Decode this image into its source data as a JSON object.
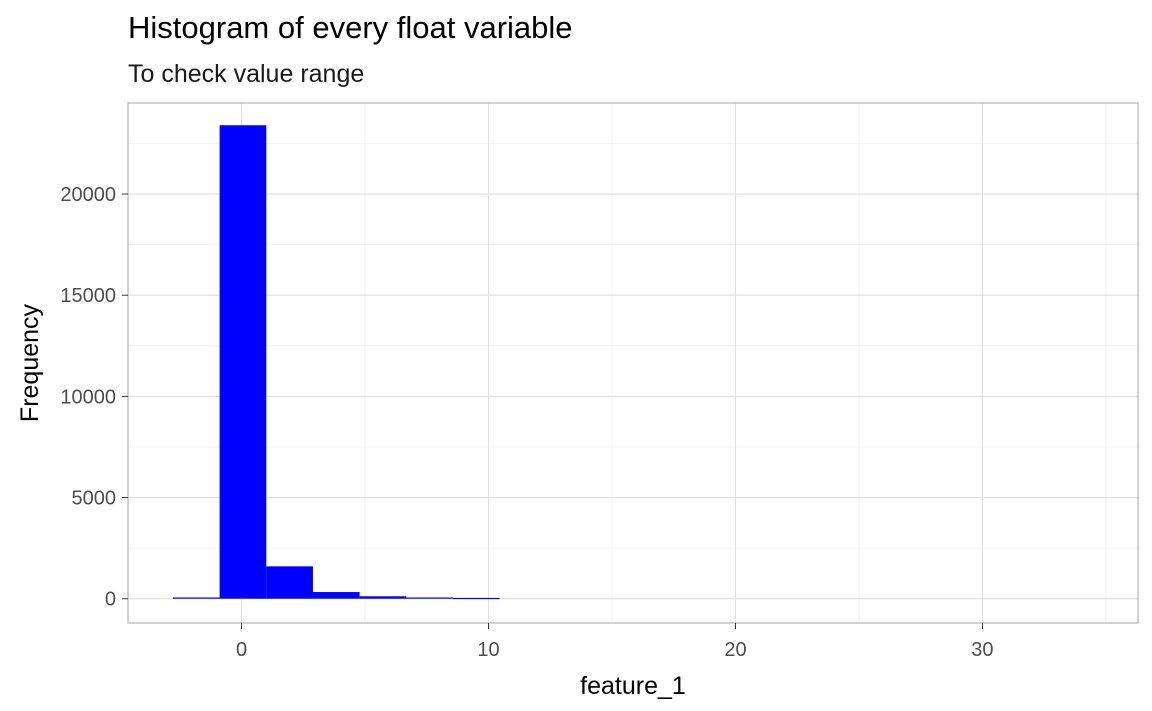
{
  "chart_data": {
    "type": "bar",
    "title": "Histogram of every float variable",
    "subtitle": "To check value range",
    "xlabel": "feature_1",
    "ylabel": "Frequency",
    "xlim": [
      -4.6,
      36.3
    ],
    "ylim": [
      -1200,
      24500
    ],
    "x_ticks": [
      0,
      10,
      20,
      30
    ],
    "y_ticks": [
      0,
      5000,
      10000,
      15000,
      20000
    ],
    "bins": [
      {
        "x0": -2.78,
        "x1": -0.89,
        "count": 60
      },
      {
        "x0": -0.89,
        "x1": 1.0,
        "count": 23400
      },
      {
        "x0": 1.0,
        "x1": 2.89,
        "count": 1600
      },
      {
        "x0": 2.89,
        "x1": 4.78,
        "count": 330
      },
      {
        "x0": 4.78,
        "x1": 6.67,
        "count": 120
      },
      {
        "x0": 6.67,
        "x1": 8.56,
        "count": 60
      },
      {
        "x0": 8.56,
        "x1": 10.45,
        "count": 40
      }
    ],
    "bar_color": "#0000ff",
    "grid": true,
    "legend": "none"
  }
}
